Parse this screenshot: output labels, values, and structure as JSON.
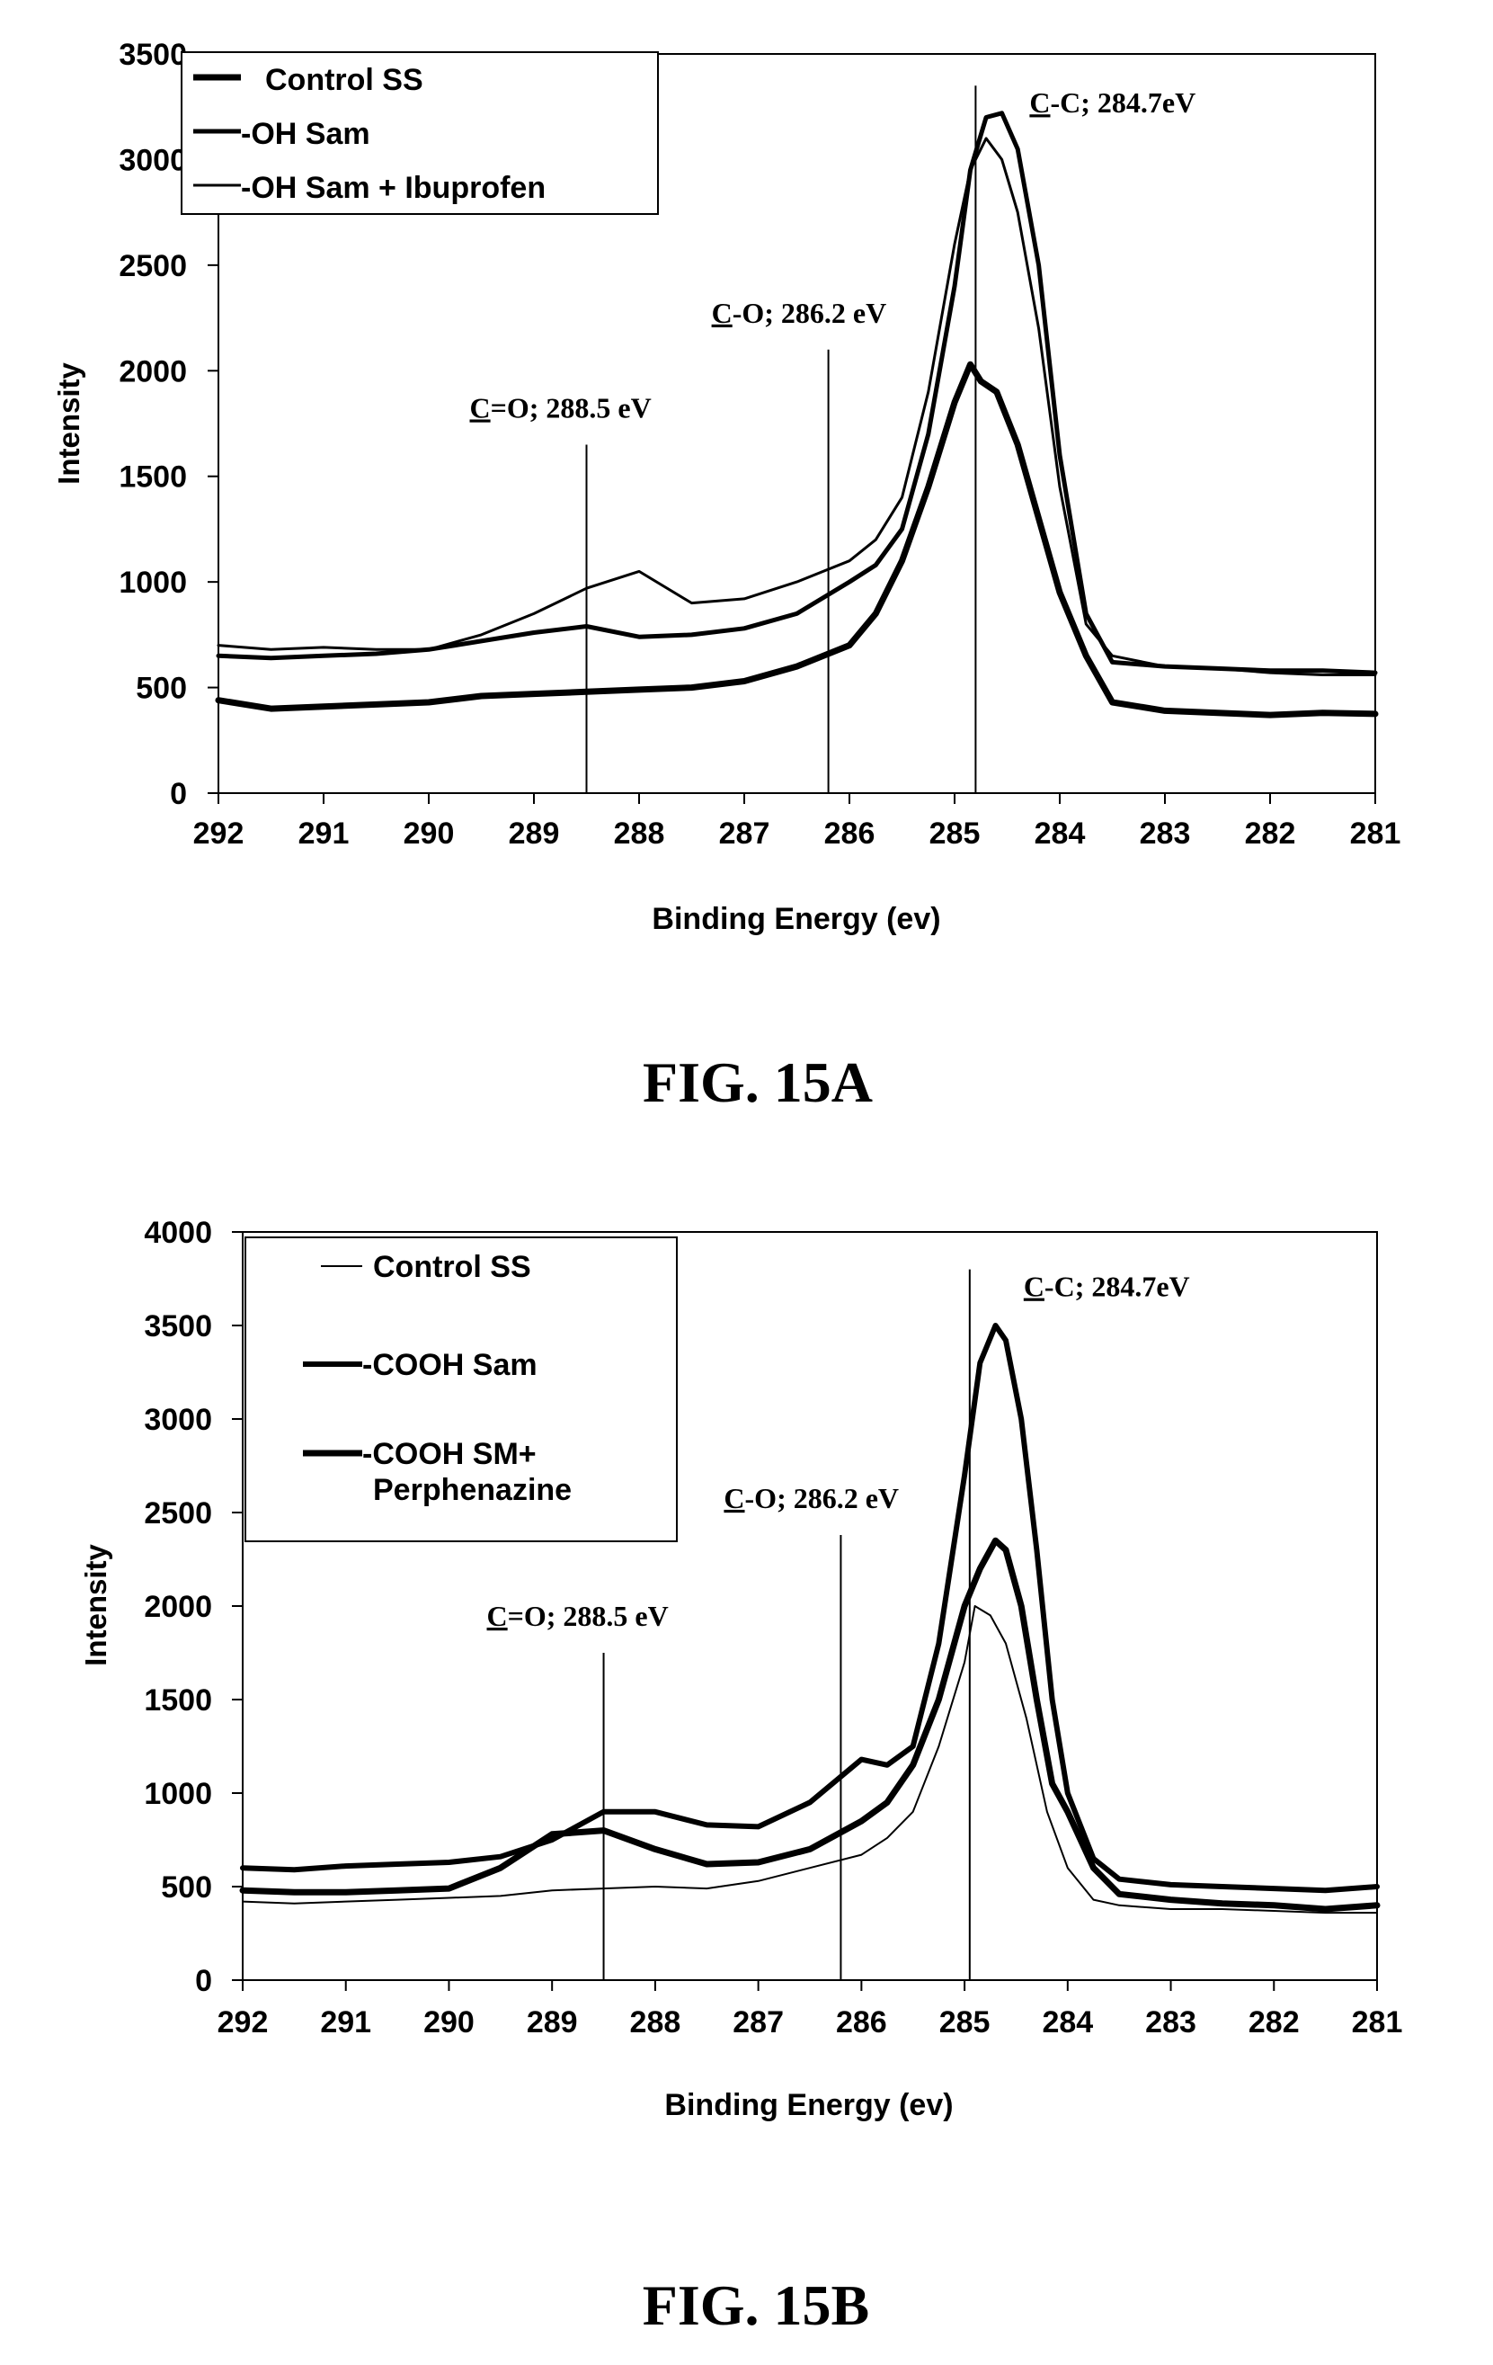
{
  "chart_data": [
    {
      "type": "line",
      "figure_label": "FIG. 15A",
      "xlabel": "Binding Energy (ev)",
      "ylabel": "Intensity",
      "xlim": [
        292,
        281
      ],
      "ylim": [
        0,
        3500
      ],
      "x_ticks": [
        "292",
        "291",
        "290",
        "289",
        "288",
        "287",
        "286",
        "285",
        "284",
        "283",
        "282",
        "281"
      ],
      "y_ticks": [
        "0",
        "500",
        "1000",
        "1500",
        "2000",
        "2500",
        "3000",
        "3500"
      ],
      "legend": [
        "Control SS",
        "-OH Sam",
        "-OH Sam + Ibuprofen"
      ],
      "series": [
        {
          "name": "Control SS",
          "x": [
            292,
            291.5,
            291,
            290.5,
            290,
            289.5,
            289,
            288.5,
            288,
            287.5,
            287,
            286.5,
            286,
            285.75,
            285.5,
            285.25,
            285,
            284.85,
            284.75,
            284.6,
            284.4,
            284.2,
            284,
            283.75,
            283.5,
            283,
            282.5,
            282,
            281.5,
            281
          ],
          "y": [
            440,
            400,
            410,
            420,
            430,
            460,
            470,
            480,
            490,
            500,
            530,
            600,
            700,
            850,
            1100,
            1450,
            1850,
            2030,
            1950,
            1900,
            1650,
            1300,
            950,
            650,
            430,
            390,
            380,
            370,
            380,
            375
          ]
        },
        {
          "name": "-OH Sam",
          "x": [
            292,
            291.5,
            291,
            290.5,
            290,
            289.5,
            289,
            288.5,
            288,
            287.5,
            287,
            286.5,
            286,
            285.75,
            285.5,
            285.25,
            285,
            284.85,
            284.7,
            284.55,
            284.4,
            284.2,
            284,
            283.75,
            283.5,
            283,
            282.5,
            282,
            281.5,
            281
          ],
          "y": [
            650,
            640,
            650,
            660,
            680,
            720,
            760,
            790,
            740,
            750,
            780,
            850,
            1000,
            1080,
            1250,
            1700,
            2400,
            2950,
            3200,
            3220,
            3050,
            2500,
            1600,
            850,
            620,
            600,
            590,
            580,
            580,
            570
          ]
        },
        {
          "name": "-OH Sam + Ibuprofen",
          "x": [
            292,
            291.5,
            291,
            290.5,
            290,
            289.5,
            289,
            288.5,
            288,
            287.5,
            287,
            286.5,
            286,
            285.75,
            285.5,
            285.25,
            285,
            284.85,
            284.7,
            284.55,
            284.4,
            284.2,
            284,
            283.75,
            283.5,
            283,
            282.5,
            282,
            281.5,
            281
          ],
          "y": [
            700,
            680,
            690,
            680,
            680,
            750,
            850,
            970,
            1050,
            900,
            920,
            1000,
            1100,
            1200,
            1400,
            1900,
            2600,
            2950,
            3100,
            3000,
            2750,
            2200,
            1450,
            800,
            650,
            600,
            590,
            570,
            560,
            560
          ]
        }
      ],
      "annotations": [
        {
          "text_ul": "C",
          "text_rest": "=O; 288.5 eV",
          "x": 288.5,
          "line_top": 1650
        },
        {
          "text_ul": "C",
          "text_rest": "-O; 286.2 eV",
          "x": 286.2,
          "line_top": 2100
        },
        {
          "text_ul": "C",
          "text_rest": "-C; 284.7eV",
          "x": 284.8,
          "line_top": 3350
        }
      ]
    },
    {
      "type": "line",
      "figure_label": "FIG. 15B",
      "xlabel": "Binding Energy (ev)",
      "ylabel": "Intensity",
      "xlim": [
        292,
        281
      ],
      "ylim": [
        0,
        4000
      ],
      "x_ticks": [
        "292",
        "291",
        "290",
        "289",
        "288",
        "287",
        "286",
        "285",
        "284",
        "283",
        "282",
        "281"
      ],
      "y_ticks": [
        "0",
        "500",
        "1000",
        "1500",
        "2000",
        "2500",
        "3000",
        "3500",
        "4000"
      ],
      "legend": [
        "Control SS",
        "-COOH Sam",
        "-COOH SM+ Perphenazine"
      ],
      "series": [
        {
          "name": "Control SS",
          "x": [
            292,
            291.5,
            291,
            290.5,
            290,
            289.5,
            289,
            288.5,
            288,
            287.5,
            287,
            286.5,
            286,
            285.75,
            285.5,
            285.25,
            285,
            284.9,
            284.75,
            284.6,
            284.4,
            284.2,
            284,
            283.75,
            283.5,
            283,
            282.5,
            282,
            281.5,
            281
          ],
          "y": [
            420,
            410,
            420,
            430,
            440,
            450,
            480,
            490,
            500,
            490,
            530,
            600,
            670,
            760,
            900,
            1250,
            1700,
            2000,
            1950,
            1800,
            1400,
            900,
            600,
            430,
            400,
            380,
            380,
            370,
            360,
            360
          ]
        },
        {
          "name": "-COOH Sam",
          "x": [
            292,
            291.5,
            291,
            290.5,
            290,
            289.5,
            289,
            288.5,
            288,
            287.5,
            287,
            286.5,
            286,
            285.75,
            285.5,
            285.25,
            285,
            284.85,
            284.7,
            284.6,
            284.45,
            284.3,
            284.15,
            284,
            283.75,
            283.5,
            283,
            282.5,
            282,
            281.5,
            281
          ],
          "y": [
            600,
            590,
            610,
            620,
            630,
            660,
            750,
            900,
            900,
            830,
            820,
            950,
            1180,
            1150,
            1250,
            1800,
            2700,
            3300,
            3500,
            3420,
            3000,
            2300,
            1500,
            1000,
            650,
            540,
            510,
            500,
            490,
            480,
            500
          ]
        },
        {
          "name": "-COOH SM+ Perphenazine",
          "x": [
            292,
            291.5,
            291,
            290.5,
            290,
            289.5,
            289,
            288.5,
            288,
            287.5,
            287,
            286.5,
            286,
            285.75,
            285.5,
            285.25,
            285,
            284.85,
            284.7,
            284.6,
            284.45,
            284.3,
            284.15,
            284,
            283.75,
            283.5,
            283,
            282.5,
            282,
            281.5,
            281
          ],
          "y": [
            480,
            470,
            470,
            480,
            490,
            600,
            780,
            800,
            700,
            620,
            630,
            700,
            850,
            950,
            1150,
            1500,
            2000,
            2200,
            2350,
            2300,
            2000,
            1500,
            1050,
            900,
            600,
            460,
            430,
            410,
            400,
            380,
            400
          ]
        }
      ],
      "annotations": [
        {
          "text_ul": "C",
          "text_rest": "=O; 288.5 eV",
          "x": 288.5,
          "line_top": 1750
        },
        {
          "text_ul": "C",
          "text_rest": "-O; 286.2 eV",
          "x": 286.2,
          "line_top": 2380
        },
        {
          "text_ul": "C",
          "text_rest": "-C; 284.7eV",
          "x": 284.95,
          "line_top": 3800
        }
      ]
    }
  ]
}
